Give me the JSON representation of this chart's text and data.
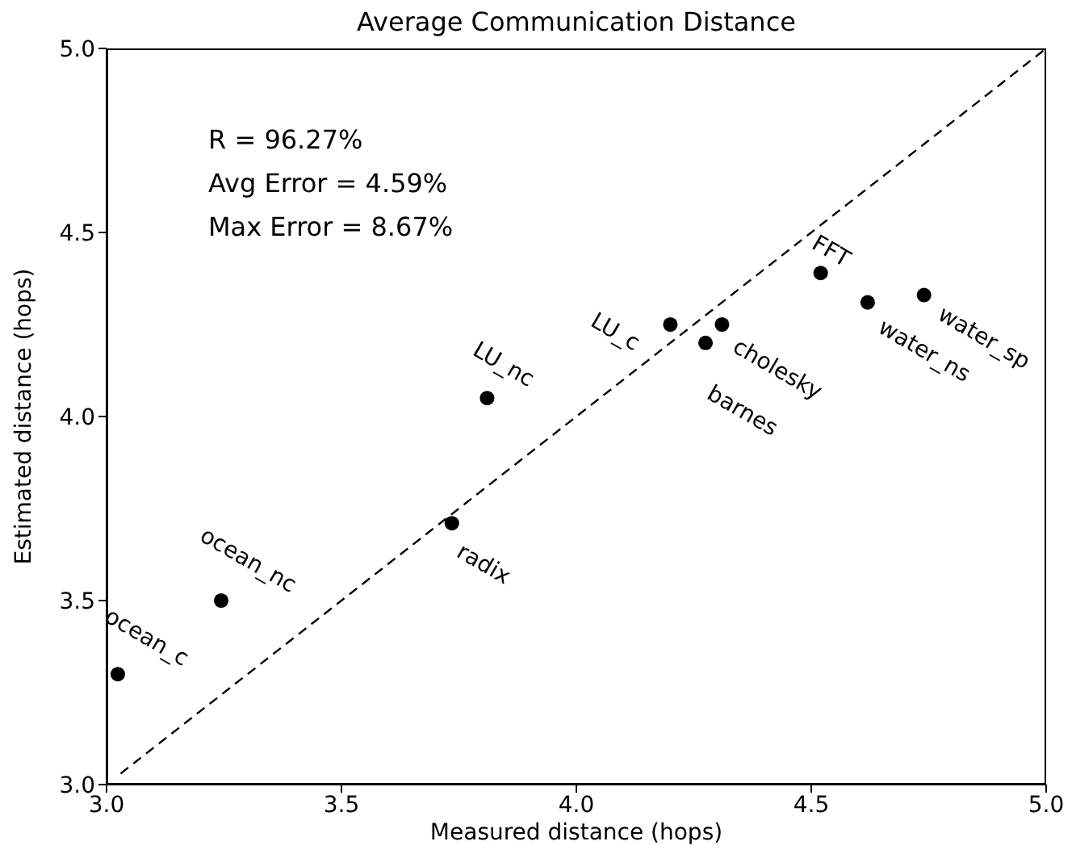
{
  "chart_data": {
    "type": "scatter",
    "title": "Average Communication Distance",
    "xlabel": "Measured distance (hops)",
    "ylabel": "Estimated distance (hops)",
    "annotations": [
      "R = 96.27%",
      "Avg Error = 4.59%",
      "Max Error = 8.67%",
      {
        "text": "ocean_c",
        "x": 3.024,
        "y": 3.3
      },
      {
        "text": "ocean_nc",
        "x": 3.244,
        "y": 3.5
      },
      {
        "text": "radix",
        "x": 3.735,
        "y": 3.71
      },
      {
        "text": "LU_nc",
        "x": 3.81,
        "y": 4.05
      },
      {
        "text": "LU_c",
        "x": 4.2,
        "y": 4.25
      },
      {
        "text": "barnes",
        "x": 4.275,
        "y": 4.2
      },
      {
        "text": "cholesky",
        "x": 4.31,
        "y": 4.25
      },
      {
        "text": "FFT",
        "x": 4.52,
        "y": 4.39
      },
      {
        "text": "water_ns",
        "x": 4.62,
        "y": 4.31
      },
      {
        "text": "water_sp",
        "x": 4.74,
        "y": 4.33
      }
    ],
    "series": [
      {
        "color": "#000000",
        "marker": "circle",
        "x": [
          3.024,
          3.244,
          3.735,
          3.81,
          4.2,
          4.275,
          4.31,
          4.52,
          4.62,
          4.74
        ],
        "values": [
          3.3,
          3.5,
          3.71,
          4.05,
          4.25,
          4.2,
          4.25,
          4.39,
          4.31,
          4.33
        ]
      },
      {
        "type": "line",
        "color": "#000000",
        "line_style": "dashed",
        "marker": "none",
        "x": [
          3.03,
          5.0
        ],
        "values": [
          3.03,
          5.0
        ]
      }
    ],
    "xlim": [
      3.0,
      5.0
    ],
    "ylim": [
      3.0,
      5.0
    ],
    "xticks": [
      {
        "value": 3,
        "label": "3.0"
      },
      {
        "value": 3.5,
        "label": "3.5"
      },
      {
        "value": 4,
        "label": "4.0"
      },
      {
        "value": 4.5,
        "label": "4.5"
      },
      {
        "value": 5,
        "label": "5.0"
      }
    ],
    "yticks": [
      {
        "value": 3,
        "label": "3.0"
      },
      {
        "value": 3.5,
        "label": "3.5"
      },
      {
        "value": 4,
        "label": "4.0"
      },
      {
        "value": 4.5,
        "label": "4.5"
      },
      {
        "value": 5,
        "label": "5.0"
      }
    ],
    "grid": false
  }
}
